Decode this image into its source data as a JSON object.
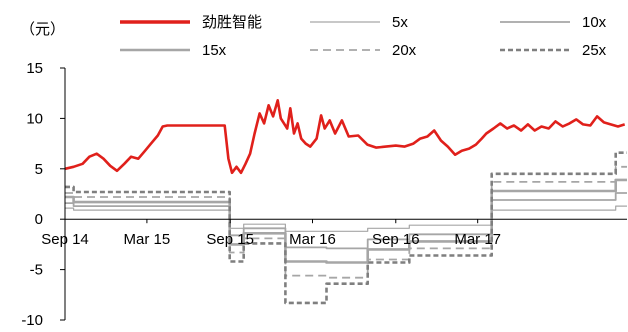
{
  "chart_data": {
    "type": "line",
    "unit_label": "（元）",
    "ylim": [
      -10,
      15
    ],
    "y_ticks": [
      {
        "value": 15,
        "label": "15"
      },
      {
        "value": 10,
        "label": "10"
      },
      {
        "value": 5,
        "label": "5"
      },
      {
        "value": 0,
        "label": "0"
      },
      {
        "value": -5,
        "label": "-5"
      },
      {
        "value": -10,
        "label": "-10"
      }
    ],
    "x_range": [
      "2014-09-01",
      "2018-01-25"
    ],
    "x_ticks": [
      {
        "date": "2014-09-01",
        "label": "Sep 14"
      },
      {
        "date": "2015-03-01",
        "label": "Mar 15"
      },
      {
        "date": "2015-09-01",
        "label": "Sep 15"
      },
      {
        "date": "2016-03-01",
        "label": "Mar 16"
      },
      {
        "date": "2016-09-01",
        "label": "Sep 16"
      },
      {
        "date": "2017-03-01",
        "label": "Mar 17"
      }
    ],
    "legend_position": "top",
    "grid": false,
    "series": [
      {
        "name": "劲胜智能",
        "color": "#e0201b",
        "style": "solid",
        "weight": "thick",
        "points": [
          [
            "2014-09-01",
            5.0
          ],
          [
            "2014-09-20",
            5.2
          ],
          [
            "2014-10-10",
            5.5
          ],
          [
            "2014-10-25",
            6.2
          ],
          [
            "2014-11-10",
            6.5
          ],
          [
            "2014-11-25",
            6.0
          ],
          [
            "2014-12-10",
            5.3
          ],
          [
            "2014-12-25",
            4.8
          ],
          [
            "2015-01-10",
            5.5
          ],
          [
            "2015-01-25",
            6.2
          ],
          [
            "2015-02-10",
            6.0
          ],
          [
            "2015-02-25",
            6.8
          ],
          [
            "2015-03-10",
            7.5
          ],
          [
            "2015-03-25",
            8.3
          ],
          [
            "2015-04-05",
            9.2
          ],
          [
            "2015-04-15",
            9.3
          ],
          [
            "2015-08-20",
            9.3
          ],
          [
            "2015-08-28",
            6.0
          ],
          [
            "2015-09-05",
            4.6
          ],
          [
            "2015-09-15",
            5.2
          ],
          [
            "2015-09-25",
            4.6
          ],
          [
            "2015-10-05",
            5.5
          ],
          [
            "2015-10-15",
            6.5
          ],
          [
            "2015-10-25",
            8.5
          ],
          [
            "2015-11-05",
            10.5
          ],
          [
            "2015-11-15",
            9.5
          ],
          [
            "2015-11-25",
            11.3
          ],
          [
            "2015-12-05",
            10.2
          ],
          [
            "2015-12-15",
            11.8
          ],
          [
            "2015-12-22",
            10.0
          ],
          [
            "2016-01-05",
            9.0
          ],
          [
            "2016-01-12",
            11.0
          ],
          [
            "2016-01-20",
            8.5
          ],
          [
            "2016-01-28",
            9.5
          ],
          [
            "2016-02-05",
            8.0
          ],
          [
            "2016-02-15",
            7.5
          ],
          [
            "2016-02-25",
            7.2
          ],
          [
            "2016-03-10",
            8.0
          ],
          [
            "2016-03-20",
            10.3
          ],
          [
            "2016-03-28",
            9.0
          ],
          [
            "2016-04-08",
            9.8
          ],
          [
            "2016-04-20",
            8.5
          ],
          [
            "2016-05-05",
            9.8
          ],
          [
            "2016-05-20",
            8.2
          ],
          [
            "2016-06-10",
            8.3
          ],
          [
            "2016-06-30",
            7.4
          ],
          [
            "2016-07-20",
            7.1
          ],
          [
            "2016-08-10",
            7.2
          ],
          [
            "2016-09-01",
            7.3
          ],
          [
            "2016-09-20",
            7.2
          ],
          [
            "2016-10-10",
            7.5
          ],
          [
            "2016-10-25",
            8.0
          ],
          [
            "2016-11-10",
            8.2
          ],
          [
            "2016-11-25",
            8.8
          ],
          [
            "2016-12-10",
            7.8
          ],
          [
            "2016-12-25",
            7.2
          ],
          [
            "2017-01-10",
            6.4
          ],
          [
            "2017-01-25",
            6.8
          ],
          [
            "2017-02-10",
            7.0
          ],
          [
            "2017-02-25",
            7.4
          ],
          [
            "2017-03-10",
            8.0
          ],
          [
            "2017-03-20",
            8.5
          ],
          [
            "2017-04-05",
            9.0
          ],
          [
            "2017-04-20",
            9.5
          ],
          [
            "2017-05-05",
            9.0
          ],
          [
            "2017-05-20",
            9.3
          ],
          [
            "2017-06-05",
            8.8
          ],
          [
            "2017-06-20",
            9.4
          ],
          [
            "2017-07-05",
            8.8
          ],
          [
            "2017-07-20",
            9.2
          ],
          [
            "2017-08-05",
            9.0
          ],
          [
            "2017-08-20",
            9.7
          ],
          [
            "2017-09-05",
            9.2
          ],
          [
            "2017-09-20",
            9.5
          ],
          [
            "2017-10-05",
            9.9
          ],
          [
            "2017-10-20",
            9.4
          ],
          [
            "2017-11-05",
            9.3
          ],
          [
            "2017-11-20",
            10.2
          ],
          [
            "2017-12-05",
            9.6
          ],
          [
            "2017-12-20",
            9.4
          ],
          [
            "2018-01-05",
            9.2
          ],
          [
            "2018-01-20",
            9.4
          ]
        ]
      },
      {
        "name": "5x",
        "color": "#a6a6a6",
        "style": "solid",
        "weight": "thin",
        "points": [
          [
            "2014-09-01",
            1.1
          ],
          [
            "2014-09-20",
            1.1
          ],
          [
            "2014-09-20",
            0.9
          ],
          [
            "2015-08-31",
            0.9
          ],
          [
            "2015-08-31",
            -0.9
          ],
          [
            "2015-10-01",
            -0.9
          ],
          [
            "2015-10-01",
            -0.5
          ],
          [
            "2016-01-01",
            -0.5
          ],
          [
            "2016-01-01",
            -1.2
          ],
          [
            "2016-04-01",
            -1.2
          ],
          [
            "2016-04-01",
            -1.2
          ],
          [
            "2016-07-01",
            -1.2
          ],
          [
            "2016-07-01",
            -0.9
          ],
          [
            "2016-10-01",
            -0.9
          ],
          [
            "2016-10-01",
            -0.6
          ],
          [
            "2017-04-01",
            -0.6
          ],
          [
            "2017-04-01",
            0.9
          ],
          [
            "2017-12-31",
            0.9
          ],
          [
            "2017-12-31",
            1.3
          ],
          [
            "2018-01-25",
            1.3
          ]
        ]
      },
      {
        "name": "10x",
        "color": "#a6a6a6",
        "style": "solid",
        "weight": "medium",
        "points": [
          [
            "2014-09-01",
            1.6
          ],
          [
            "2014-09-20",
            1.6
          ],
          [
            "2014-09-20",
            1.3
          ],
          [
            "2015-08-31",
            1.3
          ],
          [
            "2015-08-31",
            -1.6
          ],
          [
            "2015-10-01",
            -1.6
          ],
          [
            "2015-10-01",
            -0.9
          ],
          [
            "2016-01-01",
            -0.9
          ],
          [
            "2016-01-01",
            -2.8
          ],
          [
            "2016-04-01",
            -2.8
          ],
          [
            "2016-04-01",
            -2.9
          ],
          [
            "2016-07-01",
            -2.9
          ],
          [
            "2016-07-01",
            -2.0
          ],
          [
            "2016-10-01",
            -2.0
          ],
          [
            "2016-10-01",
            -1.5
          ],
          [
            "2017-04-01",
            -1.5
          ],
          [
            "2017-04-01",
            1.9
          ],
          [
            "2017-12-31",
            1.9
          ],
          [
            "2017-12-31",
            2.6
          ],
          [
            "2018-01-25",
            2.6
          ]
        ]
      },
      {
        "name": "15x",
        "color": "#a6a6a6",
        "style": "solid",
        "weight": "thick",
        "points": [
          [
            "2014-09-01",
            2.2
          ],
          [
            "2014-09-20",
            2.2
          ],
          [
            "2014-09-20",
            1.7
          ],
          [
            "2015-08-31",
            1.7
          ],
          [
            "2015-08-31",
            -2.5
          ],
          [
            "2015-10-01",
            -2.5
          ],
          [
            "2015-10-01",
            -1.4
          ],
          [
            "2016-01-01",
            -1.4
          ],
          [
            "2016-01-01",
            -4.2
          ],
          [
            "2016-04-01",
            -4.2
          ],
          [
            "2016-04-01",
            -4.3
          ],
          [
            "2016-07-01",
            -4.3
          ],
          [
            "2016-07-01",
            -3.0
          ],
          [
            "2016-10-01",
            -3.0
          ],
          [
            "2016-10-01",
            -2.2
          ],
          [
            "2017-04-01",
            -2.2
          ],
          [
            "2017-04-01",
            2.8
          ],
          [
            "2017-12-31",
            2.8
          ],
          [
            "2017-12-31",
            3.9
          ],
          [
            "2018-01-25",
            3.9
          ]
        ]
      },
      {
        "name": "20x",
        "color": "#a6a6a6",
        "style": "dashed",
        "weight": "medium",
        "points": [
          [
            "2014-09-01",
            2.6
          ],
          [
            "2014-09-20",
            2.6
          ],
          [
            "2014-09-20",
            2.2
          ],
          [
            "2015-08-31",
            2.2
          ],
          [
            "2015-08-31",
            -3.3
          ],
          [
            "2015-10-01",
            -3.3
          ],
          [
            "2015-10-01",
            -1.9
          ],
          [
            "2016-01-01",
            -1.9
          ],
          [
            "2016-01-01",
            -5.6
          ],
          [
            "2016-04-01",
            -5.6
          ],
          [
            "2016-04-01",
            -5.8
          ],
          [
            "2016-07-01",
            -5.8
          ],
          [
            "2016-07-01",
            -4.0
          ],
          [
            "2016-10-01",
            -4.0
          ],
          [
            "2016-10-01",
            -2.9
          ],
          [
            "2017-04-01",
            -2.9
          ],
          [
            "2017-04-01",
            3.7
          ],
          [
            "2017-12-31",
            3.7
          ],
          [
            "2017-12-31",
            5.2
          ],
          [
            "2018-01-25",
            5.2
          ]
        ]
      },
      {
        "name": "25x",
        "color": "#7f7f7f",
        "style": "dashed",
        "weight": "thick",
        "points": [
          [
            "2014-09-01",
            3.2
          ],
          [
            "2014-09-20",
            3.2
          ],
          [
            "2014-09-20",
            2.7
          ],
          [
            "2015-08-31",
            2.7
          ],
          [
            "2015-08-31",
            -4.2
          ],
          [
            "2015-10-01",
            -4.2
          ],
          [
            "2015-10-01",
            -2.4
          ],
          [
            "2016-01-01",
            -2.4
          ],
          [
            "2016-01-01",
            -8.3
          ],
          [
            "2016-04-01",
            -8.3
          ],
          [
            "2016-04-01",
            -6.4
          ],
          [
            "2016-07-01",
            -6.4
          ],
          [
            "2016-07-01",
            -4.3
          ],
          [
            "2016-10-01",
            -4.3
          ],
          [
            "2016-10-01",
            -3.6
          ],
          [
            "2017-04-01",
            -3.6
          ],
          [
            "2017-04-01",
            4.5
          ],
          [
            "2017-12-31",
            4.5
          ],
          [
            "2017-12-31",
            6.6
          ],
          [
            "2018-01-25",
            6.6
          ]
        ]
      }
    ]
  }
}
